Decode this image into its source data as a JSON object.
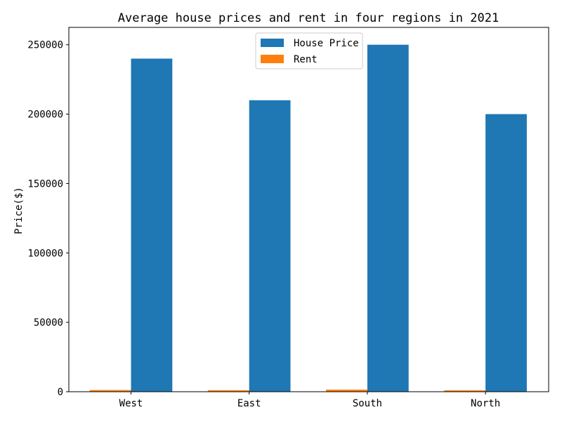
{
  "chart_data": {
    "type": "bar",
    "title": "Average house prices and rent in four regions in 2021",
    "xlabel": "",
    "ylabel": "Price($)",
    "categories": [
      "West",
      "East",
      "South",
      "North"
    ],
    "series": [
      {
        "name": "House Price",
        "color": "#1f77b4",
        "values": [
          240000,
          210000,
          250000,
          200000
        ]
      },
      {
        "name": "Rent",
        "color": "#ff7f0e",
        "values": [
          1200,
          1100,
          1500,
          1000
        ]
      }
    ],
    "ylim": [
      0,
      262500
    ],
    "yticks": [
      "0",
      "50000",
      "100000",
      "150000",
      "200000",
      "250000"
    ],
    "ytick_values": [
      0,
      50000,
      100000,
      150000,
      200000,
      250000
    ],
    "grid": false,
    "legend_position": "top-center"
  }
}
